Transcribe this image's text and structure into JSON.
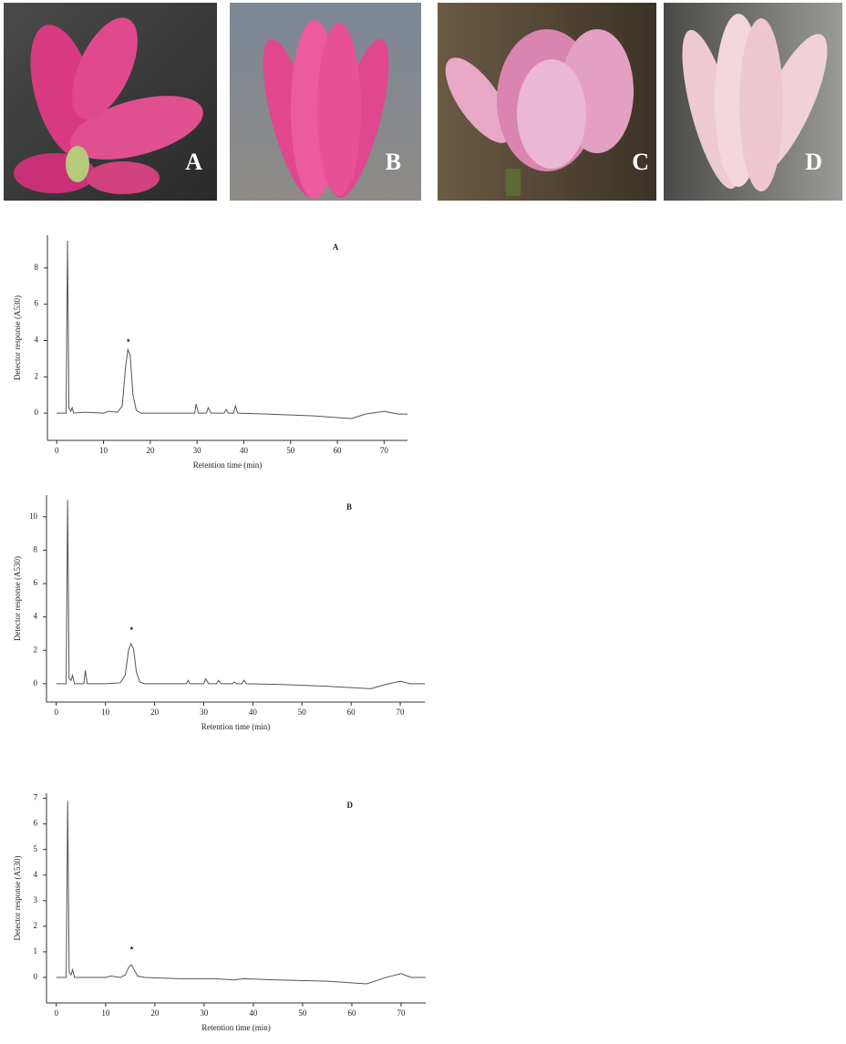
{
  "photos": [
    {
      "label": "A"
    },
    {
      "label": "B"
    },
    {
      "label": "C"
    },
    {
      "label": "D"
    }
  ],
  "chart_data": [
    {
      "type": "line",
      "title": "A",
      "x_label": "Retention time (min)",
      "y_label": "Detector response (A530)",
      "x": [
        0,
        2,
        2.3,
        2.6,
        3,
        3.3,
        3.6,
        6,
        10,
        11,
        13,
        14,
        14.7,
        15.2,
        15.7,
        16.3,
        17,
        18,
        28,
        29.5,
        29.8,
        30.3,
        32,
        32.4,
        33,
        35.8,
        36.2,
        36.7,
        37.8,
        38.2,
        38.7,
        45,
        55,
        63,
        66,
        70,
        73,
        75
      ],
      "series": [
        {
          "color": "#555555",
          "values": [
            0,
            0,
            9.5,
            0.3,
            0.1,
            0.3,
            0,
            0.05,
            0,
            0.1,
            0.05,
            0.4,
            2.5,
            3.5,
            3.2,
            1,
            0.15,
            0,
            0,
            0,
            0.5,
            0,
            0,
            0.3,
            0,
            0,
            0.2,
            0,
            0,
            0.4,
            0,
            -0.05,
            -0.15,
            -0.3,
            -0.05,
            0.1,
            -0.05,
            -0.05
          ]
        }
      ],
      "annotations": [
        {
          "text": "*",
          "x": 15.3,
          "y": 4.1
        }
      ],
      "xlim": [
        -2,
        75
      ],
      "xticks": [
        0,
        10,
        20,
        30,
        40,
        50,
        60,
        70
      ],
      "ylim": [
        -1.5,
        9.8
      ],
      "yticks": [
        0,
        2,
        4,
        6,
        8
      ]
    },
    {
      "type": "line",
      "title": "B",
      "x_label": "Retention time (min)",
      "y_label": "Detector response (A530)",
      "x": [
        0,
        2,
        2.3,
        2.6,
        3,
        3.3,
        3.7,
        5.6,
        5.9,
        6.3,
        10,
        13,
        14,
        14.7,
        15.2,
        15.7,
        16.3,
        17,
        18,
        26.5,
        26.8,
        27.2,
        30,
        30.4,
        31,
        32.6,
        33,
        33.5,
        35.8,
        36.2,
        36.7,
        37.8,
        38.2,
        38.7,
        46,
        55,
        64,
        67,
        70,
        72,
        75
      ],
      "series": [
        {
          "color": "#555555",
          "values": [
            0,
            0,
            11,
            0.3,
            0.2,
            0.5,
            0,
            0,
            0.8,
            0,
            0,
            0.05,
            0.5,
            2,
            2.4,
            2.1,
            0.7,
            0.1,
            0,
            0,
            0.2,
            0,
            0,
            0.3,
            0,
            0,
            0.2,
            0,
            0,
            0.1,
            0,
            0,
            0.2,
            0,
            -0.05,
            -0.15,
            -0.3,
            -0.05,
            0.15,
            0,
            0
          ]
        }
      ],
      "annotations": [
        {
          "text": "*",
          "x": 15.3,
          "y": 3.4
        }
      ],
      "xlim": [
        -2,
        75
      ],
      "xticks": [
        0,
        10,
        20,
        30,
        40,
        50,
        60,
        70
      ],
      "ylim": [
        -1.1,
        11.3
      ],
      "yticks": [
        0,
        2,
        4,
        6,
        8,
        10
      ]
    },
    {
      "type": "line",
      "title": "D",
      "x_label": "Retention time (min)",
      "y_label": "Detector response (A530)",
      "x": [
        0,
        2,
        2.3,
        2.6,
        3,
        3.3,
        3.7,
        10,
        11,
        13,
        14,
        14.7,
        15.2,
        15.8,
        16.5,
        18,
        25,
        32,
        36,
        38,
        45,
        55,
        63,
        67,
        70,
        72,
        75
      ],
      "series": [
        {
          "color": "#555555",
          "values": [
            0,
            0,
            6.9,
            0.2,
            0.1,
            0.3,
            0,
            0,
            0.05,
            0,
            0.1,
            0.4,
            0.5,
            0.3,
            0.05,
            0,
            -0.05,
            -0.05,
            -0.1,
            -0.05,
            -0.1,
            -0.15,
            -0.25,
            0,
            0.15,
            0,
            0
          ]
        }
      ],
      "annotations": [
        {
          "text": "*",
          "x": 15.3,
          "y": 1.2
        }
      ],
      "xlim": [
        -2,
        75
      ],
      "xticks": [
        0,
        10,
        20,
        30,
        40,
        50,
        60,
        70
      ],
      "ylim": [
        -1,
        7.2
      ],
      "yticks": [
        0,
        1,
        2,
        3,
        4,
        5,
        6,
        7
      ]
    }
  ]
}
